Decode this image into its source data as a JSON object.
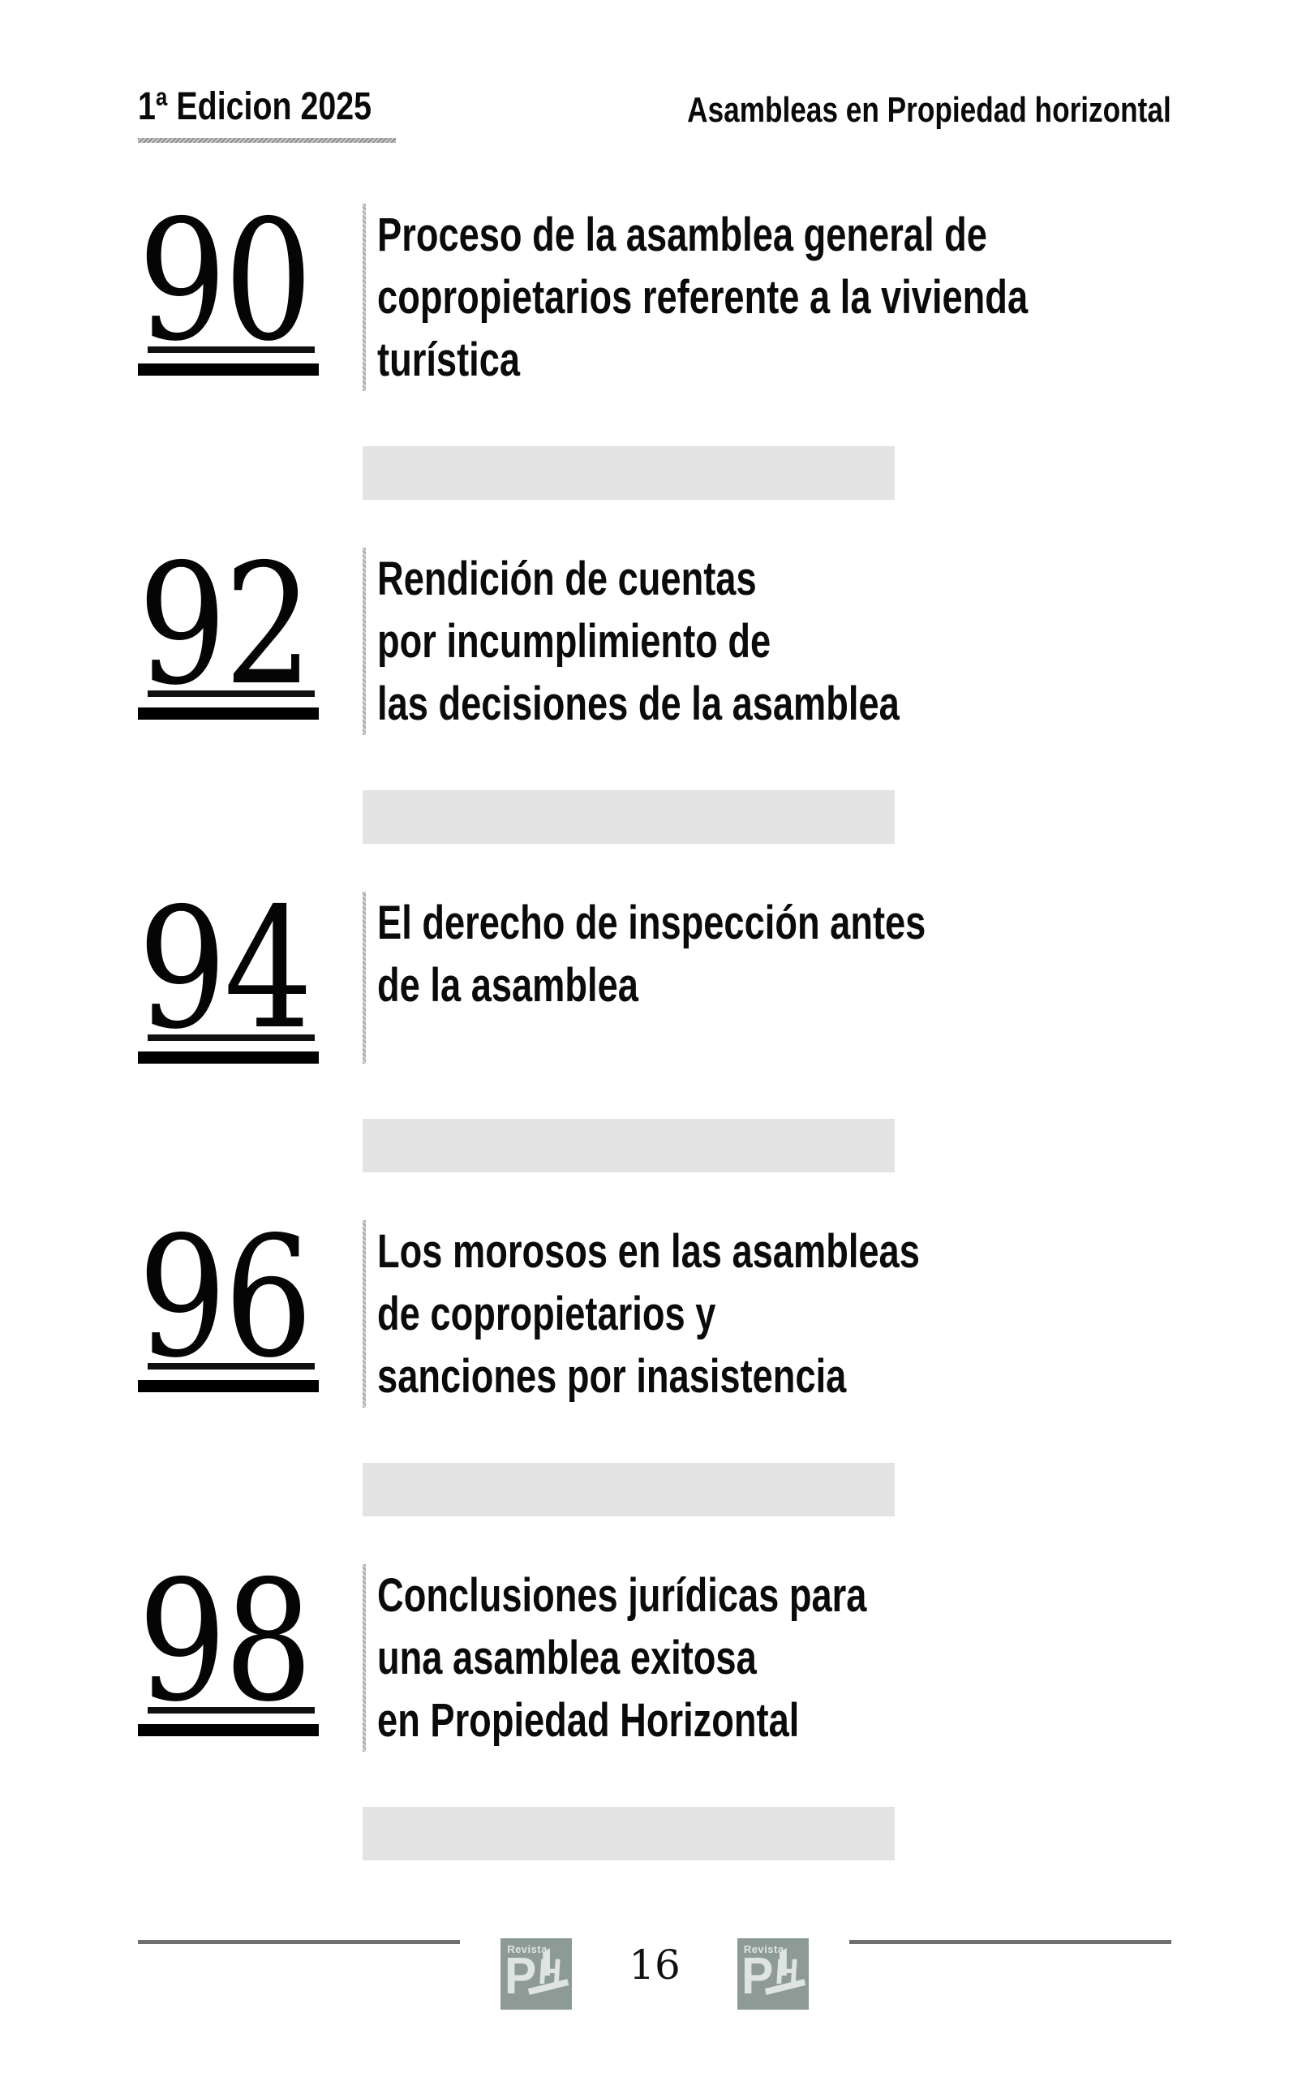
{
  "header": {
    "edition": "1ª Edicion 2025",
    "journal": "Asambleas en Propiedad horizontal"
  },
  "entries": [
    {
      "number": "90",
      "lines": [
        "Proceso de la asamblea general de",
        "copropietarios referente a la vivienda",
        "turística"
      ]
    },
    {
      "number": "92",
      "lines": [
        "Rendición de cuentas",
        "por incumplimiento de",
        "las decisiones de la asamblea"
      ]
    },
    {
      "number": "94",
      "lines": [
        "El derecho de inspección antes",
        "de la asamblea"
      ]
    },
    {
      "number": "96",
      "lines": [
        "Los morosos en las asambleas",
        "de copropietarios y",
        "sanciones por inasistencia"
      ]
    },
    {
      "number": "98",
      "lines": [
        "Conclusiones jurídicas para",
        "una asamblea exitosa",
        "en Propiedad Horizontal"
      ]
    }
  ],
  "footer": {
    "page_number": "16",
    "logo": {
      "revista_label": "Revista",
      "monogram_letters": [
        "P",
        "H"
      ]
    }
  },
  "colors": {
    "separator_bar": "#e3e3e3",
    "logo_background": "#8d9a96",
    "logo_foreground": "#dde4e1",
    "footer_line": "#6f6f6f",
    "divider_hatch": "#a8a8a8",
    "text": "#0a0a0a"
  }
}
